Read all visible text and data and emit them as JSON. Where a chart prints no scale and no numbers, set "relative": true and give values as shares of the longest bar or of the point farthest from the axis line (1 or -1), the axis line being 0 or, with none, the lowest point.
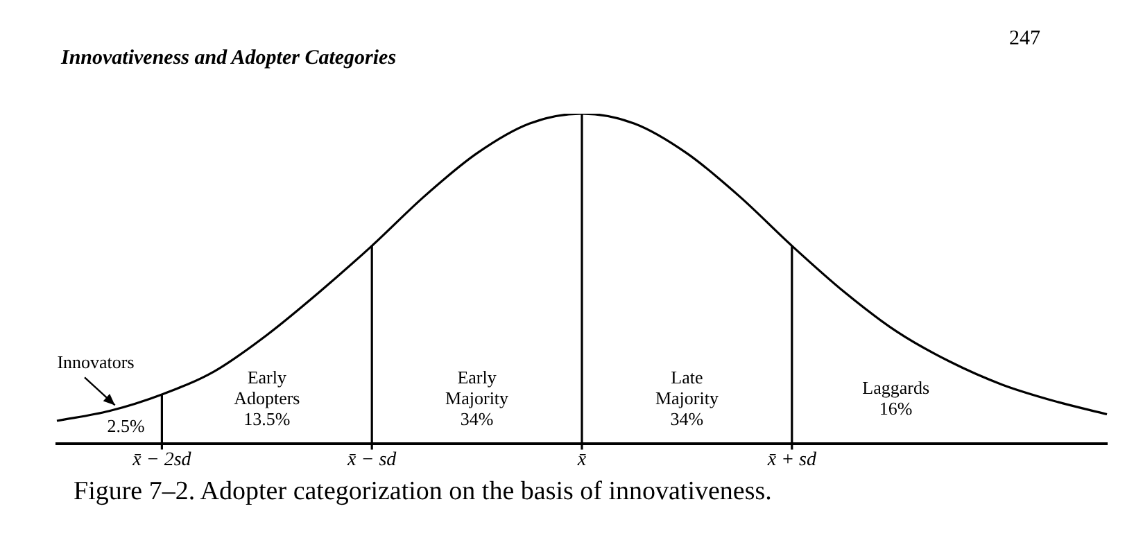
{
  "chart_data": {
    "type": "line",
    "title": "Innovativeness and Adopter Categories",
    "relative": true,
    "categories": [
      null,
      null,
      "x̄ − 2sd",
      null,
      null,
      null,
      "x̄ − sd",
      null,
      null,
      null,
      "x̄",
      null,
      null,
      null,
      "x̄ + sd",
      null,
      null,
      null,
      null,
      null,
      null
    ],
    "series": [
      {
        "color": "#000000",
        "values": [
          0.07,
          0.1,
          0.15,
          0.22,
          0.33,
          0.46,
          0.6,
          0.75,
          0.88,
          0.97,
          1,
          0.97,
          0.88,
          0.75,
          0.6,
          0.46,
          0.34,
          0.25,
          0.18,
          0.13,
          0.09
        ]
      }
    ],
    "ref_lines": [
      {
        "axis": "x",
        "value": "x̄ − 2sd"
      },
      {
        "axis": "x",
        "value": "x̄ − sd"
      },
      {
        "axis": "x",
        "value": "x̄"
      },
      {
        "axis": "x",
        "value": "x̄ + sd"
      }
    ],
    "annotations": [
      "247",
      "Figure 7–2. Adopter categorization on the basis of innovativeness.",
      "Innovators\n2.5%",
      "Early\nAdopters\n13.5%",
      "Early\nMajority\n34%",
      "Late\nMajority\n34%",
      "Laggards\n16%"
    ],
    "grid": false,
    "legend": false,
    "marker": "none",
    "line_style": "solid"
  }
}
